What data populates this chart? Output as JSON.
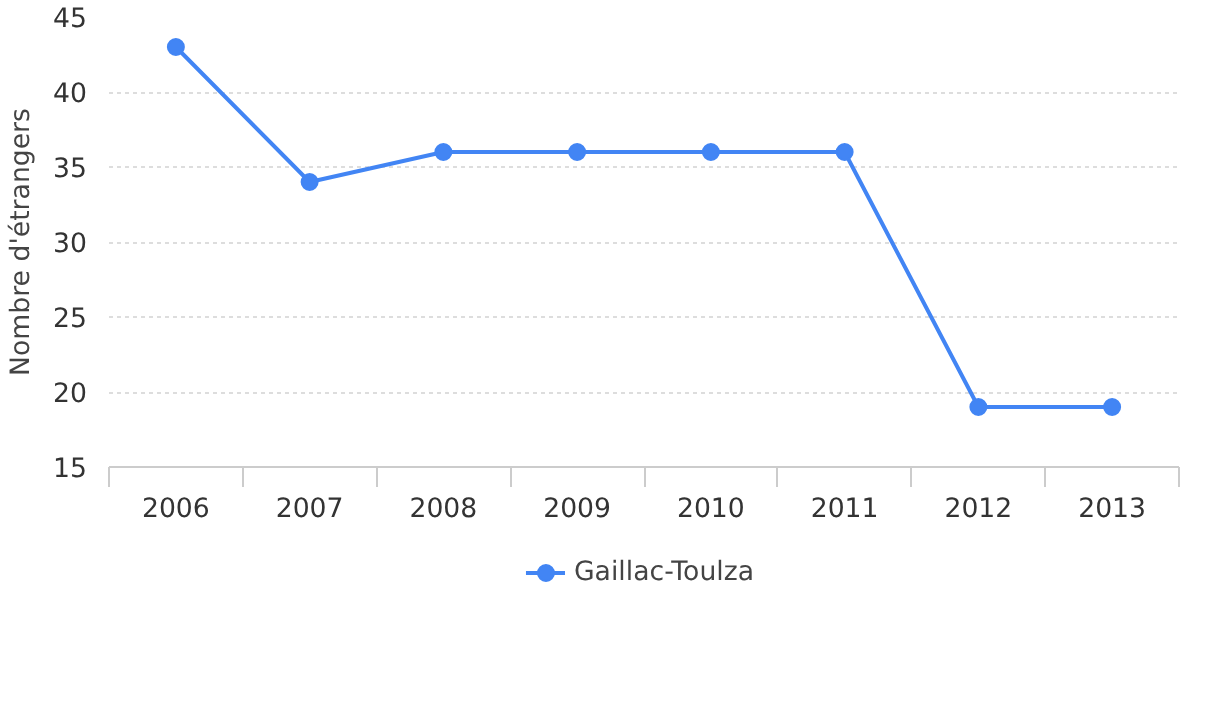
{
  "chart_data": {
    "type": "line",
    "ylabel": "Nombre d'étrangers",
    "categories": [
      "2006",
      "2007",
      "2008",
      "2009",
      "2010",
      "2011",
      "2012",
      "2013"
    ],
    "series": [
      {
        "name": "Gaillac-Toulza",
        "color": "#4285f4",
        "values": [
          43,
          34,
          36,
          36,
          36,
          36,
          19,
          19
        ]
      }
    ],
    "ylim": [
      15,
      45
    ],
    "yticks": [
      15,
      20,
      25,
      30,
      35,
      40,
      45
    ],
    "grid": "y",
    "legend": "bottom",
    "marker": "circle",
    "line_style": "solid"
  }
}
